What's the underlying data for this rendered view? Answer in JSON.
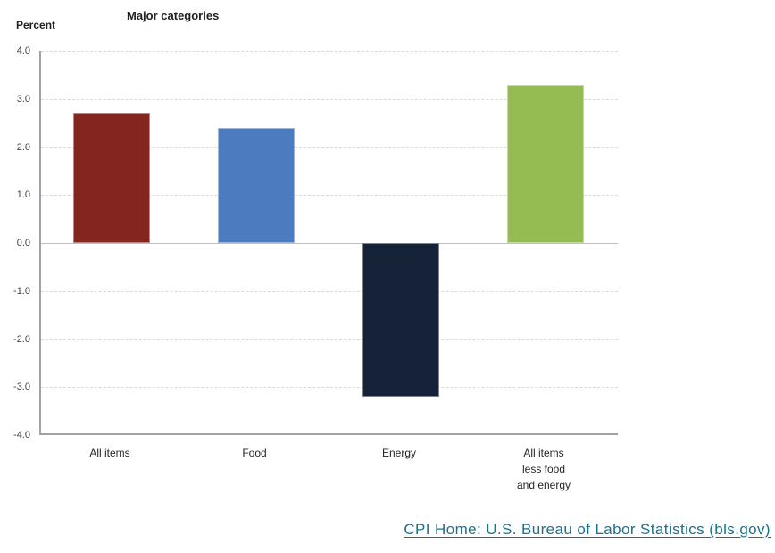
{
  "chart": {
    "unit_label": "Percent",
    "title": "Major categories"
  },
  "chart_data": {
    "type": "bar",
    "title": "Major categories",
    "ylabel": "Percent",
    "categories": [
      "All items",
      "Food",
      "Energy",
      "All items less food and energy"
    ],
    "category_lines": [
      [
        "All items"
      ],
      [
        "Food"
      ],
      [
        "Energy"
      ],
      [
        "All items",
        "less food",
        "and energy"
      ]
    ],
    "values": [
      2.7,
      2.4,
      -3.2,
      3.3
    ],
    "bar_colors": [
      "#84251f",
      "#4c7bbf",
      "#152238",
      "#94bc52"
    ],
    "ylim": [
      -4.0,
      4.0
    ],
    "yticks": [
      4.0,
      3.0,
      2.0,
      1.0,
      0.0,
      -1.0,
      -2.0,
      -3.0,
      -4.0
    ],
    "ytick_labels": [
      "4.0",
      "3.0",
      "2.0",
      "1.0",
      "0.0",
      "-1.0",
      "-2.0",
      "-3.0",
      "-4.0"
    ],
    "grid": "horizontal-dashed",
    "legend": "none"
  },
  "footer": {
    "link_text": "CPI Home: U.S. Bureau of Labor Statistics (bls.gov)"
  },
  "colors": {
    "background": "#ffffff",
    "grid_line": "#d9d9d9",
    "zero_line": "#bfbfbf",
    "axis_line": "#9da3a8",
    "text": "#262626",
    "tick_text": "#404040",
    "link": "#17718f"
  }
}
